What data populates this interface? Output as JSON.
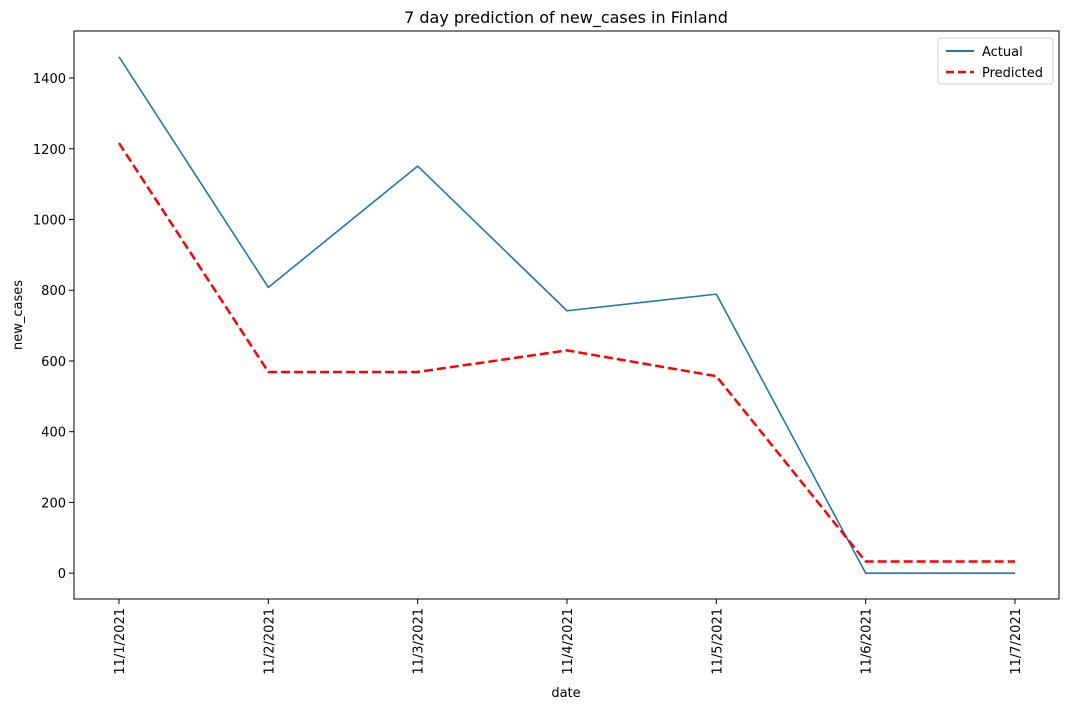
{
  "chart_data": {
    "type": "line",
    "title": "7 day prediction of new_cases in Finland",
    "xlabel": "date",
    "ylabel": "new_cases",
    "categories": [
      "11/1/2021",
      "11/2/2021",
      "11/3/2021",
      "11/4/2021",
      "11/5/2021",
      "11/6/2021",
      "11/7/2021"
    ],
    "yticks": [
      0,
      200,
      400,
      600,
      800,
      1000,
      1200,
      1400
    ],
    "ylim": [
      -73,
      1533
    ],
    "grid": false,
    "legend_position": "top-right",
    "series": [
      {
        "name": "Actual",
        "values": [
          1460,
          808,
          1151,
          742,
          789,
          0,
          0
        ],
        "color": "#1f77b4",
        "style": "solid"
      },
      {
        "name": "Predicted",
        "values": [
          1216,
          569,
          569,
          630,
          557,
          33,
          33
        ],
        "color": "#ff0000",
        "style": "dashed"
      }
    ]
  }
}
